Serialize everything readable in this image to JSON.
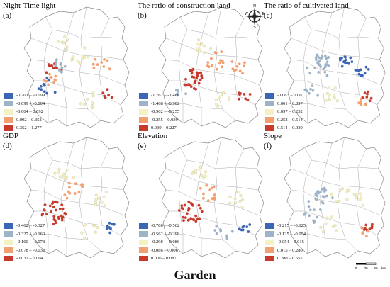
{
  "footer_title": "Garden",
  "compass": {
    "north": "N",
    "south": "S",
    "east": "E",
    "west": "W"
  },
  "scale": {
    "labels": [
      "0",
      "30",
      "60"
    ],
    "unit": "km"
  },
  "colors": {
    "c1": "#3a66b5",
    "c2": "#9eb3c8",
    "c3": "#f4f2c4",
    "c4": "#f2a070",
    "c5": "#c83a2c"
  },
  "panels": [
    {
      "id": "a",
      "title": "Night-Time light",
      "letter": "(a)",
      "legend": [
        "-0.201 – -0.099",
        "-0.099 – -0.004",
        "-0.004 – 0.092",
        "0.092 – 0.352",
        "0.352 – 1.277"
      ],
      "legend_colors": [
        "#3a66b5",
        "#9eb3c8",
        "#f4f2c4",
        "#f2a070",
        "#c83a2c"
      ]
    },
    {
      "id": "b",
      "title": "The ratio of construction land",
      "letter": "(b)",
      "legend": [
        "-1.762 – -1.468",
        "-1.468 – -0.902",
        "-0.902 – -0.255",
        "-0.255 – 0.039",
        "0.039 – 0.227"
      ],
      "legend_colors": [
        "#3a66b5",
        "#9eb3c8",
        "#f4f2c4",
        "#f2a070",
        "#c83a2c"
      ]
    },
    {
      "id": "c",
      "title": "The ratio of cultivated land",
      "letter": "(c)",
      "legend": [
        "-0.063 – 0.001",
        "0.001 – 0.097",
        "0.097 – 0.252",
        "0.252 – 0.514",
        "0.514 – 0.939"
      ],
      "legend_colors": [
        "#3a66b5",
        "#9eb3c8",
        "#f4f2c4",
        "#f2a070",
        "#c83a2c"
      ]
    },
    {
      "id": "d",
      "title": "GDP",
      "letter": "(d)",
      "legend": [
        "-0.462 – -0.327",
        "-0.327 – -0.160",
        "-0.160 – -0.078",
        "-0.078 – -0.032",
        "-0.032 – 0.004"
      ],
      "legend_colors": [
        "#3a66b5",
        "#9eb3c8",
        "#f4f2c4",
        "#f2a070",
        "#c83a2c"
      ]
    },
    {
      "id": "e",
      "title": "Elevation",
      "letter": "(e)",
      "legend": [
        "-0.786 – -0.562",
        "-0.562 – -0.298",
        "-0.298 – -0.086",
        "-0.086 – 0.006",
        "0.006 – 0.087"
      ],
      "legend_colors": [
        "#3a66b5",
        "#9eb3c8",
        "#f4f2c4",
        "#f2a070",
        "#c83a2c"
      ]
    },
    {
      "id": "f",
      "title": "Slope",
      "letter": "(f)",
      "legend": [
        "-0.215 – -0.125",
        "-0.125 – -0.054",
        "-0.054 – 0.015",
        "0.015 – 0.280",
        "0.280 – 0.557"
      ],
      "legend_colors": [
        "#3a66b5",
        "#9eb3c8",
        "#f4f2c4",
        "#f2a070",
        "#c83a2c"
      ]
    }
  ]
}
